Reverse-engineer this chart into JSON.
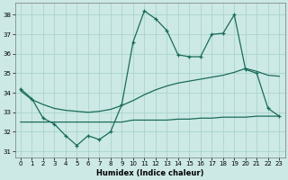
{
  "title": "",
  "xlabel": "Humidex (Indice chaleur)",
  "xlim": [
    -0.5,
    23.5
  ],
  "ylim": [
    30.7,
    38.6
  ],
  "yticks": [
    31,
    32,
    33,
    34,
    35,
    36,
    37,
    38
  ],
  "xticks": [
    0,
    1,
    2,
    3,
    4,
    5,
    6,
    7,
    8,
    9,
    10,
    11,
    12,
    13,
    14,
    15,
    16,
    17,
    18,
    19,
    20,
    21,
    22,
    23
  ],
  "bg_color": "#cce9e5",
  "grid_color": "#aad4cf",
  "line_color": "#1a6b5a",
  "line1_x": [
    0,
    1,
    2,
    3,
    4,
    5,
    6,
    7,
    8,
    9,
    10,
    11,
    12,
    13,
    14,
    15,
    16,
    17,
    18,
    19,
    20,
    21,
    22,
    23
  ],
  "line1_y": [
    34.2,
    33.7,
    32.7,
    32.4,
    31.8,
    31.3,
    31.8,
    31.6,
    32.0,
    33.4,
    36.6,
    38.2,
    37.8,
    37.2,
    35.95,
    35.85,
    35.85,
    37.0,
    37.05,
    38.0,
    35.2,
    35.0,
    33.2,
    32.8
  ],
  "line2_x": [
    0,
    1,
    2,
    3,
    4,
    5,
    6,
    7,
    8,
    9,
    10,
    11,
    12,
    13,
    14,
    15,
    16,
    17,
    18,
    19,
    20,
    21,
    22,
    23
  ],
  "line2_y": [
    32.5,
    32.5,
    32.5,
    32.5,
    32.5,
    32.5,
    32.5,
    32.5,
    32.5,
    32.5,
    32.6,
    32.6,
    32.6,
    32.6,
    32.65,
    32.65,
    32.7,
    32.7,
    32.75,
    32.75,
    32.75,
    32.8,
    32.8,
    32.8
  ],
  "line3_x": [
    0,
    1,
    2,
    3,
    4,
    5,
    6,
    7,
    8,
    9,
    10,
    11,
    12,
    13,
    14,
    15,
    16,
    17,
    18,
    19,
    20,
    21,
    22,
    23
  ],
  "line3_y": [
    34.1,
    33.65,
    33.4,
    33.2,
    33.1,
    33.05,
    33.0,
    33.05,
    33.15,
    33.35,
    33.6,
    33.9,
    34.15,
    34.35,
    34.5,
    34.6,
    34.7,
    34.8,
    34.9,
    35.05,
    35.25,
    35.1,
    34.9,
    34.85
  ]
}
